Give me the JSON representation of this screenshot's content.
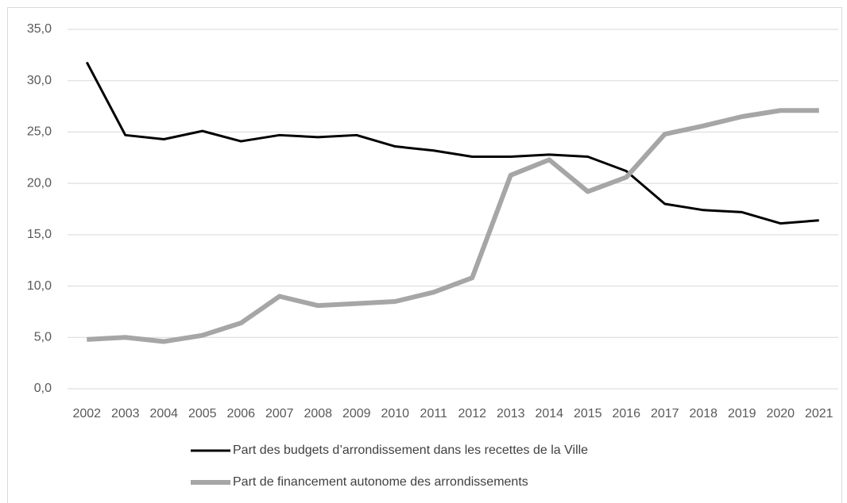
{
  "chart_data": {
    "type": "line",
    "categories": [
      "2002",
      "2003",
      "2004",
      "2005",
      "2006",
      "2007",
      "2008",
      "2009",
      "2010",
      "2011",
      "2012",
      "2013",
      "2014",
      "2015",
      "2016",
      "2017",
      "2018",
      "2019",
      "2020",
      "2021"
    ],
    "series": [
      {
        "name": "Part des budgets d’arrondissement dans les recettes de la Ville",
        "color": "#000000",
        "values": [
          31.8,
          24.7,
          24.3,
          25.1,
          24.1,
          24.7,
          24.5,
          24.7,
          23.6,
          23.2,
          22.6,
          22.6,
          22.8,
          22.6,
          21.2,
          18.0,
          17.4,
          17.2,
          16.1,
          16.4
        ]
      },
      {
        "name": "Part de financement autonome des arrondissements",
        "color": "#a6a6a6",
        "values": [
          4.8,
          5.0,
          4.6,
          5.2,
          6.4,
          9.0,
          8.1,
          8.3,
          8.5,
          9.4,
          10.8,
          20.8,
          22.3,
          19.2,
          20.6,
          24.8,
          25.6,
          26.5,
          27.1,
          27.1
        ]
      }
    ],
    "ylim": [
      0,
      35
    ],
    "yticks": [
      {
        "value": 0,
        "label": "0,0"
      },
      {
        "value": 5,
        "label": "5,0"
      },
      {
        "value": 10,
        "label": "10,0"
      },
      {
        "value": 15,
        "label": "15,0"
      },
      {
        "value": 20,
        "label": "20,0"
      },
      {
        "value": 25,
        "label": "25,0"
      },
      {
        "value": 30,
        "label": "30,0"
      },
      {
        "value": 35,
        "label": "35,0"
      }
    ],
    "grid": true,
    "legend": "bottom"
  }
}
